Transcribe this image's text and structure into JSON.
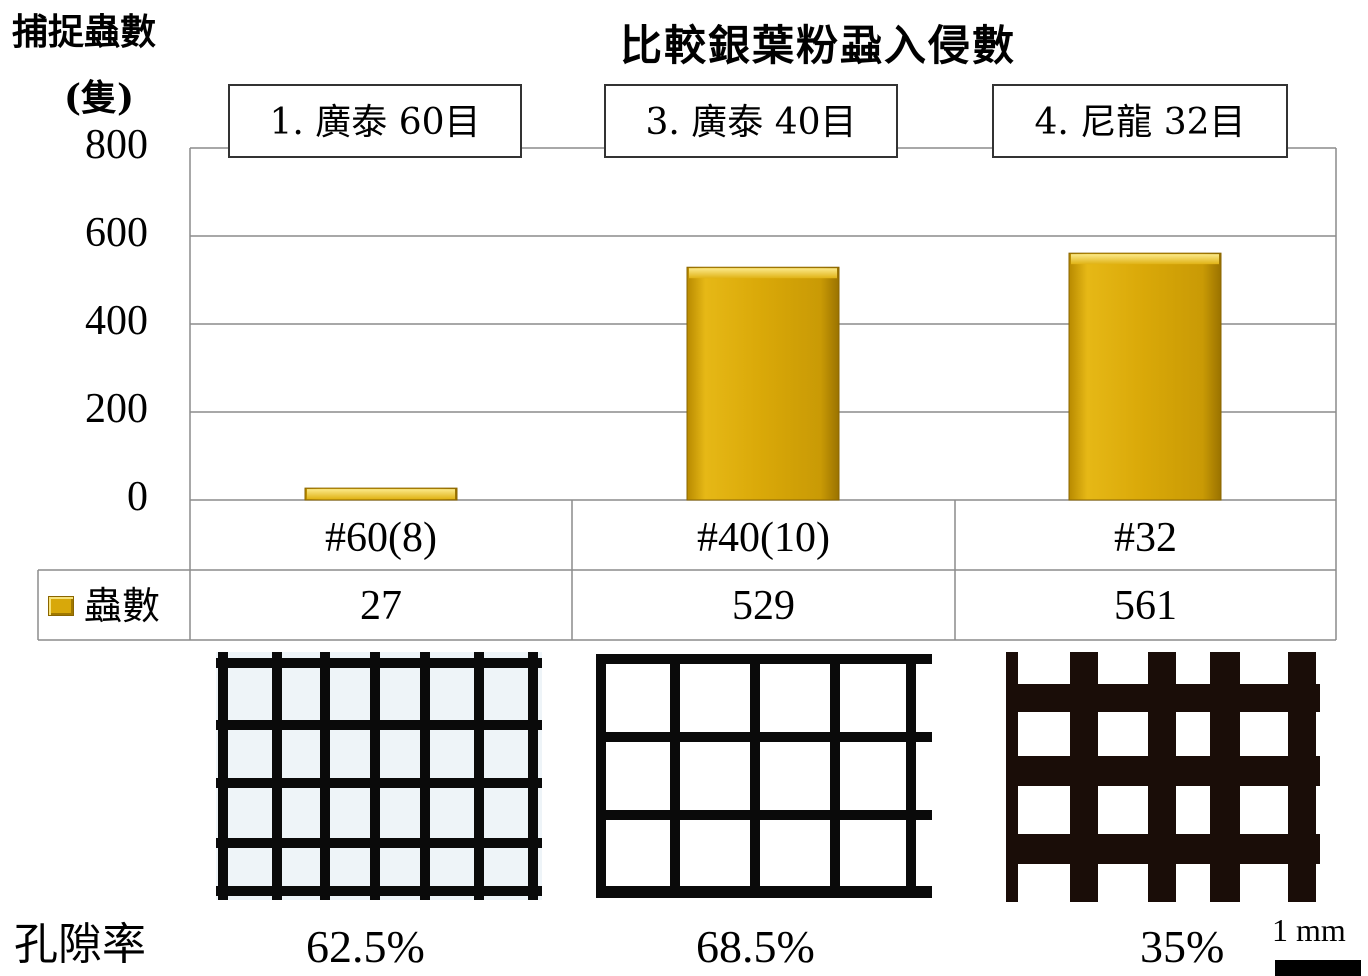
{
  "chart_data": {
    "type": "bar",
    "title": "比較銀葉粉蝨入侵數",
    "ylabel": "捕捉蟲數",
    "yunit": "(隻)",
    "ylim": [
      0,
      800
    ],
    "yticks": [
      "800",
      "600",
      "400",
      "200",
      "0"
    ],
    "grid": true,
    "categories": [
      "#60(8)",
      "#40(10)",
      "#32"
    ],
    "series": [
      {
        "name": "蟲數",
        "values": [
          27,
          529,
          561
        ],
        "color": "#d8a80a"
      }
    ],
    "data_table": {
      "series_label": "蟲數",
      "values": [
        "27",
        "529",
        "561"
      ]
    },
    "net_labels": [
      "1. 廣泰 60目",
      "3. 廣泰 40目",
      "4. 尼龍 32目"
    ]
  },
  "porosity": {
    "label": "孔隙率",
    "values": [
      "62.5%",
      "68.5%",
      "35%"
    ]
  },
  "scale_bar": {
    "label": "1 mm"
  }
}
